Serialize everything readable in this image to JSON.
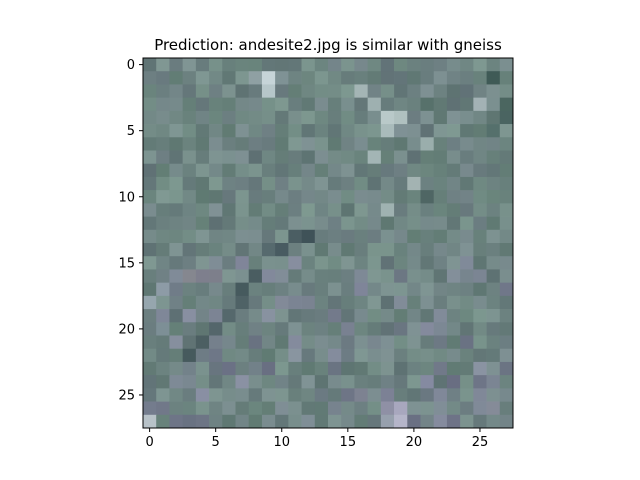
{
  "figure": {
    "title": "Prediction: andesite2.jpg is similar with gneiss"
  },
  "chart_data": {
    "type": "heatmap",
    "title": "Prediction: andesite2.jpg is similar with gneiss",
    "xlabel": "",
    "ylabel": "",
    "xlim": [
      -0.5,
      27.5
    ],
    "ylim": [
      27.5,
      -0.5
    ],
    "x_ticks": [
      0,
      5,
      10,
      15,
      20,
      25
    ],
    "y_ticks": [
      0,
      5,
      10,
      15,
      20,
      25
    ],
    "grid": false,
    "image_size": [
      28,
      28
    ],
    "base_color": "#6f8583",
    "pixels": [
      {
        "x": 9,
        "y": 1,
        "color": "#c6d4d8"
      },
      {
        "x": 9,
        "y": 2,
        "color": "#b6c6c9"
      },
      {
        "x": 8,
        "y": 1,
        "color": "#8fa0a3"
      },
      {
        "x": 18,
        "y": 4,
        "color": "#b9c9c9"
      },
      {
        "x": 19,
        "y": 4,
        "color": "#b0c1c0"
      },
      {
        "x": 18,
        "y": 5,
        "color": "#a9bbbb"
      },
      {
        "x": 17,
        "y": 7,
        "color": "#a3b5b5"
      },
      {
        "x": 21,
        "y": 6,
        "color": "#9aaeac"
      },
      {
        "x": 20,
        "y": 9,
        "color": "#a3b3b2"
      },
      {
        "x": 18,
        "y": 11,
        "color": "#9fb2b1"
      },
      {
        "x": 21,
        "y": 10,
        "color": "#4f6664"
      },
      {
        "x": 12,
        "y": 13,
        "color": "#3f5258"
      },
      {
        "x": 11,
        "y": 13,
        "color": "#4b5e63"
      },
      {
        "x": 10,
        "y": 14,
        "color": "#485b61"
      },
      {
        "x": 9,
        "y": 14,
        "color": "#566a6e"
      },
      {
        "x": 8,
        "y": 16,
        "color": "#4a5d61"
      },
      {
        "x": 7,
        "y": 17,
        "color": "#465a5e"
      },
      {
        "x": 7,
        "y": 18,
        "color": "#4f6266"
      },
      {
        "x": 6,
        "y": 19,
        "color": "#55686c"
      },
      {
        "x": 5,
        "y": 20,
        "color": "#54666b"
      },
      {
        "x": 4,
        "y": 21,
        "color": "#4c5f62"
      },
      {
        "x": 3,
        "y": 22,
        "color": "#465a5d"
      },
      {
        "x": 4,
        "y": 16,
        "color": "#7e7f8d"
      },
      {
        "x": 3,
        "y": 16,
        "color": "#85878f"
      },
      {
        "x": 5,
        "y": 16,
        "color": "#7d7f8b"
      },
      {
        "x": 1,
        "y": 17,
        "color": "#8d9ba6"
      },
      {
        "x": 0,
        "y": 18,
        "color": "#96a6ae"
      },
      {
        "x": 1,
        "y": 20,
        "color": "#7d8f96"
      },
      {
        "x": 10,
        "y": 18,
        "color": "#828a98"
      },
      {
        "x": 11,
        "y": 18,
        "color": "#7b8493"
      },
      {
        "x": 12,
        "y": 18,
        "color": "#7a8391"
      },
      {
        "x": 19,
        "y": 26,
        "color": "#a8a7be"
      },
      {
        "x": 19,
        "y": 27,
        "color": "#b5b5c9"
      },
      {
        "x": 18,
        "y": 26,
        "color": "#8f90a5"
      },
      {
        "x": 18,
        "y": 27,
        "color": "#97a0ad"
      },
      {
        "x": 0,
        "y": 27,
        "color": "#b8c2c8"
      },
      {
        "x": 16,
        "y": 25,
        "color": "#7d8291"
      },
      {
        "x": 21,
        "y": 24,
        "color": "#858aa1"
      },
      {
        "x": 22,
        "y": 25,
        "color": "#808899"
      },
      {
        "x": 26,
        "y": 26,
        "color": "#858b98"
      },
      {
        "x": 26,
        "y": 1,
        "color": "#3f5a56"
      },
      {
        "x": 27,
        "y": 3,
        "color": "#4b6660"
      },
      {
        "x": 27,
        "y": 4,
        "color": "#4a6461"
      },
      {
        "x": 26,
        "y": 5,
        "color": "#55706c"
      },
      {
        "x": 16,
        "y": 2,
        "color": "#a4b5b5"
      },
      {
        "x": 17,
        "y": 3,
        "color": "#9eb0b0"
      },
      {
        "x": 25,
        "y": 3,
        "color": "#a3b2b5"
      },
      {
        "x": 21,
        "y": 3,
        "color": "#57716b"
      }
    ]
  }
}
